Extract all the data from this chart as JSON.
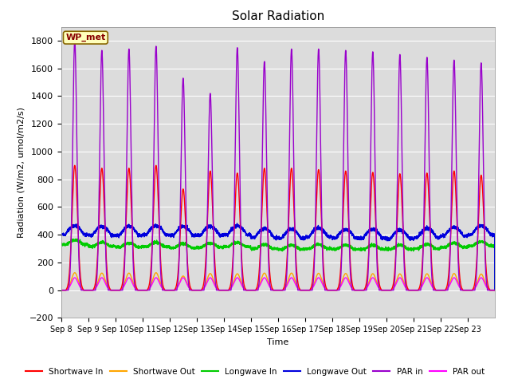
{
  "title": "Solar Radiation",
  "ylabel": "Radiation (W/m2, umol/m2/s)",
  "xlabel": "Time",
  "ylim": [
    -200,
    1900
  ],
  "yticks": [
    -200,
    0,
    200,
    400,
    600,
    800,
    1000,
    1200,
    1400,
    1600,
    1800
  ],
  "xtick_labels": [
    "Sep 8",
    "Sep 9",
    "Sep 10",
    "Sep 11",
    "Sep 12",
    "Sep 13",
    "Sep 14",
    "Sep 15",
    "Sep 16",
    "Sep 17",
    "Sep 18",
    "Sep 19",
    "Sep 20",
    "Sep 21",
    "Sep 22",
    "Sep 23"
  ],
  "bg_color": "#dcdcdc",
  "grid_color": "white",
  "colors": {
    "shortwave_in": "#ff0000",
    "shortwave_out": "#ffa500",
    "longwave_in": "#00cc00",
    "longwave_out": "#0000dd",
    "par_in": "#9900cc",
    "par_out": "#ff00ff"
  },
  "legend_label": "WP_met",
  "n_days": 16,
  "sw_in_peaks": [
    900,
    880,
    880,
    900,
    730,
    860,
    845,
    880,
    880,
    870,
    860,
    850,
    840,
    845,
    860,
    830
  ],
  "par_in_peaks": [
    1800,
    1730,
    1740,
    1760,
    1530,
    1420,
    1750,
    1650,
    1740,
    1740,
    1730,
    1720,
    1700,
    1680,
    1660,
    1640
  ],
  "lw_in_bases": [
    330,
    315,
    310,
    315,
    305,
    310,
    315,
    300,
    295,
    300,
    295,
    295,
    295,
    300,
    310,
    320
  ],
  "lw_out_bases": [
    400,
    395,
    395,
    400,
    395,
    395,
    400,
    380,
    375,
    385,
    375,
    375,
    370,
    380,
    390,
    400
  ]
}
